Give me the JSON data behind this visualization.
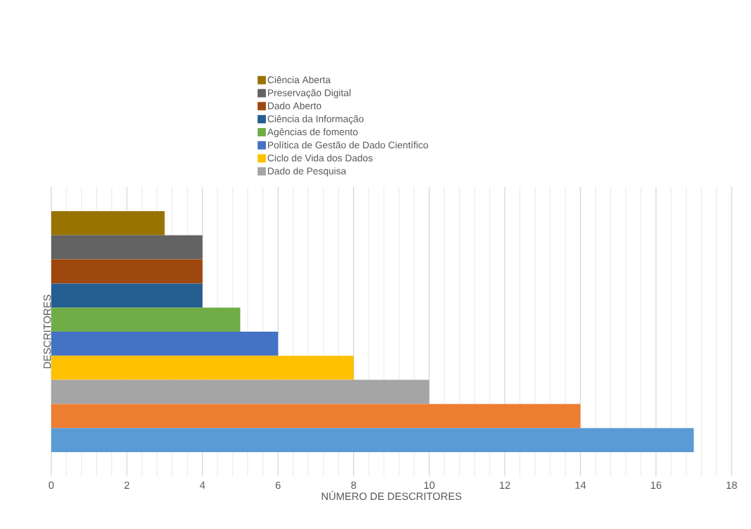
{
  "chart_data": {
    "type": "bar",
    "orientation": "horizontal",
    "xlabel": "NÚMERO DE DESCRITORES",
    "ylabel": "DESCRITORES",
    "categories": [
      null
    ],
    "series": [
      {
        "name": "Ciência Aberta",
        "color": "#997300",
        "values": [
          3
        ]
      },
      {
        "name": "Preservação Digital",
        "color": "#636363",
        "values": [
          4
        ]
      },
      {
        "name": "Dado Aberto",
        "color": "#9e480e",
        "values": [
          4
        ]
      },
      {
        "name": "Ciência da Informação",
        "color": "#255e91",
        "values": [
          4
        ]
      },
      {
        "name": "Agências de fomento",
        "color": "#70ad47",
        "values": [
          5
        ]
      },
      {
        "name": "Política de Gestão de Dado Científico",
        "color": "#4472c4",
        "values": [
          6
        ]
      },
      {
        "name": "Ciclo de Vida dos Dados",
        "color": "#ffc000",
        "values": [
          8
        ]
      },
      {
        "name": "Dado de Pesquisa",
        "color": "#a5a5a5",
        "values": [
          10
        ]
      },
      {
        "color": "#ed7d31",
        "values": [
          14
        ]
      },
      {
        "color": "#5b9bd5",
        "values": [
          17
        ]
      }
    ],
    "xlim": [
      0,
      18
    ],
    "xticks": [
      0,
      2,
      4,
      6,
      8,
      10,
      12,
      14,
      16,
      18
    ],
    "grid": "x",
    "legend": "top"
  }
}
